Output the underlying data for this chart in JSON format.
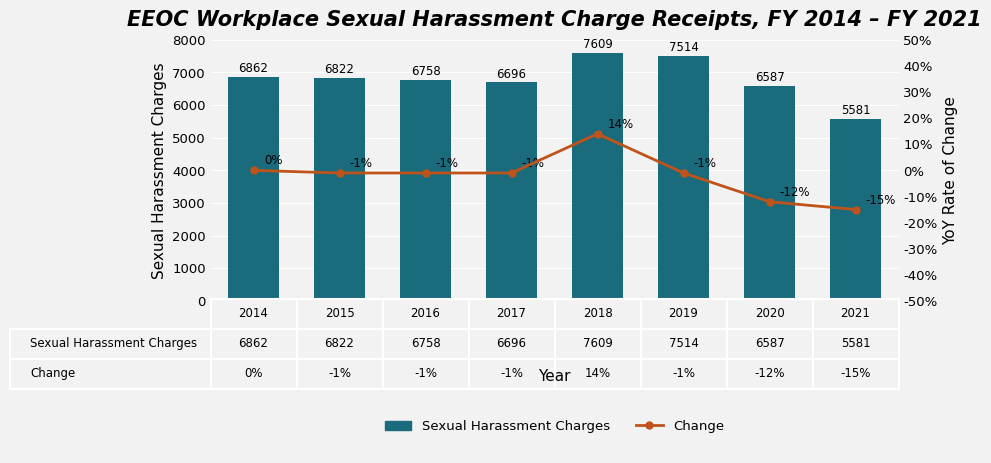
{
  "title": "EEOC Workplace Sexual Harassment Charge Receipts, FY 2014 – FY 2021",
  "years": [
    2014,
    2015,
    2016,
    2017,
    2018,
    2019,
    2020,
    2021
  ],
  "charges": [
    6862,
    6822,
    6758,
    6696,
    7609,
    7514,
    6587,
    5581
  ],
  "change_pct": [
    0,
    -1,
    -1,
    -1,
    14,
    -1,
    -12,
    -15
  ],
  "change_labels": [
    "0%",
    "-1%",
    "-1%",
    "-1%",
    "14%",
    "-1%",
    "-12%",
    "-15%"
  ],
  "bar_color": "#1a6b7c",
  "line_color": "#c0531a",
  "ylabel_left": "Sexual Harassment Charges",
  "ylabel_right": "YoY Rate of Change",
  "xlabel": "Year",
  "ylim_left": [
    0,
    8000
  ],
  "ylim_right": [
    -50,
    50
  ],
  "yticks_left": [
    0,
    1000,
    2000,
    3000,
    4000,
    5000,
    6000,
    7000,
    8000
  ],
  "yticks_right": [
    -50,
    -40,
    -30,
    -20,
    -10,
    0,
    10,
    20,
    30,
    40,
    50
  ],
  "ytick_labels_right": [
    "-50%",
    "-40%",
    "-30%",
    "-20%",
    "-10%",
    "0%",
    "10%",
    "20%",
    "30%",
    "40%",
    "50%"
  ],
  "background_color": "#f2f2f2",
  "legend_label_bar": "Sexual Harassment Charges",
  "legend_label_line": "Change",
  "table_charges_row": [
    "6862",
    "6822",
    "6758",
    "6696",
    "7609",
    "7514",
    "6587",
    "5581"
  ],
  "table_change_row": [
    "0%",
    "-1%",
    "-1%",
    "-1%",
    "14%",
    "-1%",
    "-12%",
    "-15%"
  ],
  "title_fontsize": 15,
  "axis_label_fontsize": 11,
  "tick_fontsize": 9.5,
  "bar_label_fontsize": 8.5,
  "line_label_fontsize": 8.5
}
